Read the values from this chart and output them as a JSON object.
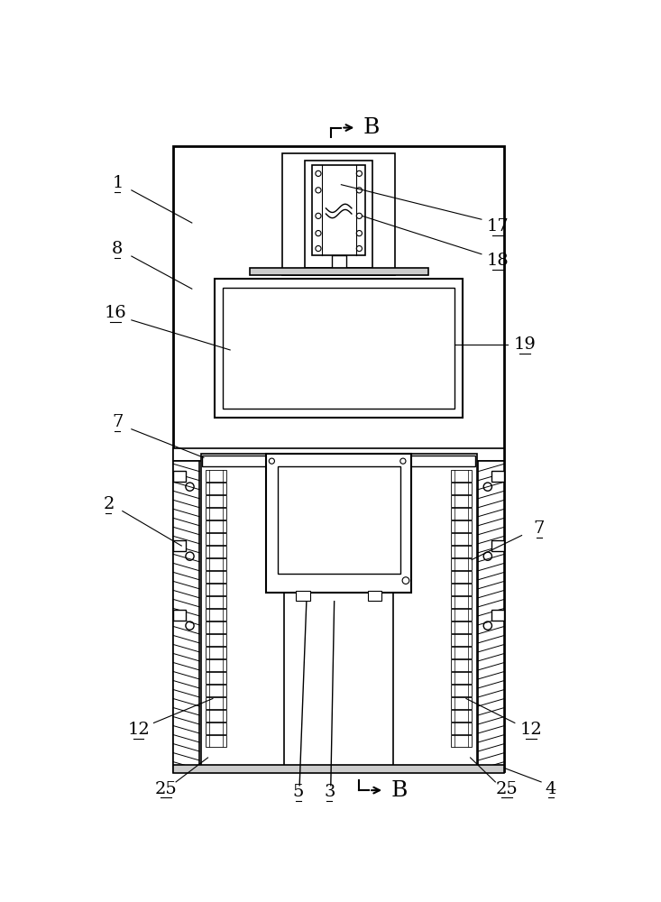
{
  "bg_color": "#ffffff",
  "lc": "#000000",
  "fig_width": 7.33,
  "fig_height": 10.0,
  "dpi": 100,
  "label_fs": 14
}
